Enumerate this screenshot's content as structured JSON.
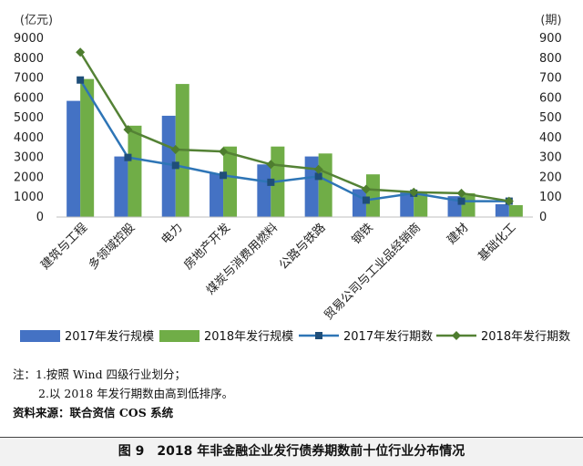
{
  "chart_data": {
    "type": "bar",
    "categories": [
      "建筑与工程",
      "多领域控股",
      "电力",
      "房地产开发",
      "煤炭与消费用燃料",
      "公路与铁路",
      "钢铁",
      "贸易公司与工业品经销商",
      "建材",
      "基础化工"
    ],
    "series": [
      {
        "name": "2017年发行规模",
        "type": "bar",
        "axis": "left",
        "color": "#4472c4",
        "values": [
          5850,
          3050,
          5100,
          2200,
          2650,
          3050,
          1400,
          1250,
          1050,
          650
        ]
      },
      {
        "name": "2018年发行规模",
        "type": "bar",
        "axis": "left",
        "color": "#70ad47",
        "values": [
          6950,
          4600,
          6700,
          3550,
          3550,
          3200,
          2150,
          1250,
          1200,
          600
        ]
      },
      {
        "name": "2017年发行期数",
        "type": "line",
        "axis": "right",
        "color": "#2e75b6",
        "values": [
          690,
          300,
          260,
          210,
          175,
          205,
          85,
          120,
          80,
          80
        ]
      },
      {
        "name": "2018年发行期数",
        "type": "line",
        "axis": "right",
        "color": "#548235",
        "values": [
          830,
          440,
          340,
          330,
          265,
          240,
          140,
          125,
          120,
          80
        ]
      }
    ],
    "y_left": {
      "unit": "(亿元)",
      "ticks": [
        0,
        1000,
        2000,
        3000,
        4000,
        5000,
        6000,
        7000,
        8000,
        9000
      ],
      "range": [
        0,
        9000
      ]
    },
    "y_right": {
      "unit": "(期)",
      "ticks": [
        0,
        100,
        200,
        300,
        400,
        500,
        600,
        700,
        800,
        900
      ],
      "range": [
        0,
        900
      ]
    },
    "legend_position": "bottom",
    "grid": false
  },
  "notes": {
    "line1": "注：1.按照 Wind 四级行业划分；",
    "line2": "2.以 2018 年发行期数由高到低排序。",
    "source": "资料来源：联合资信 COS 系统"
  },
  "caption": "图 9　2018 年非金融企业发行债券期数前十位行业分布情况"
}
